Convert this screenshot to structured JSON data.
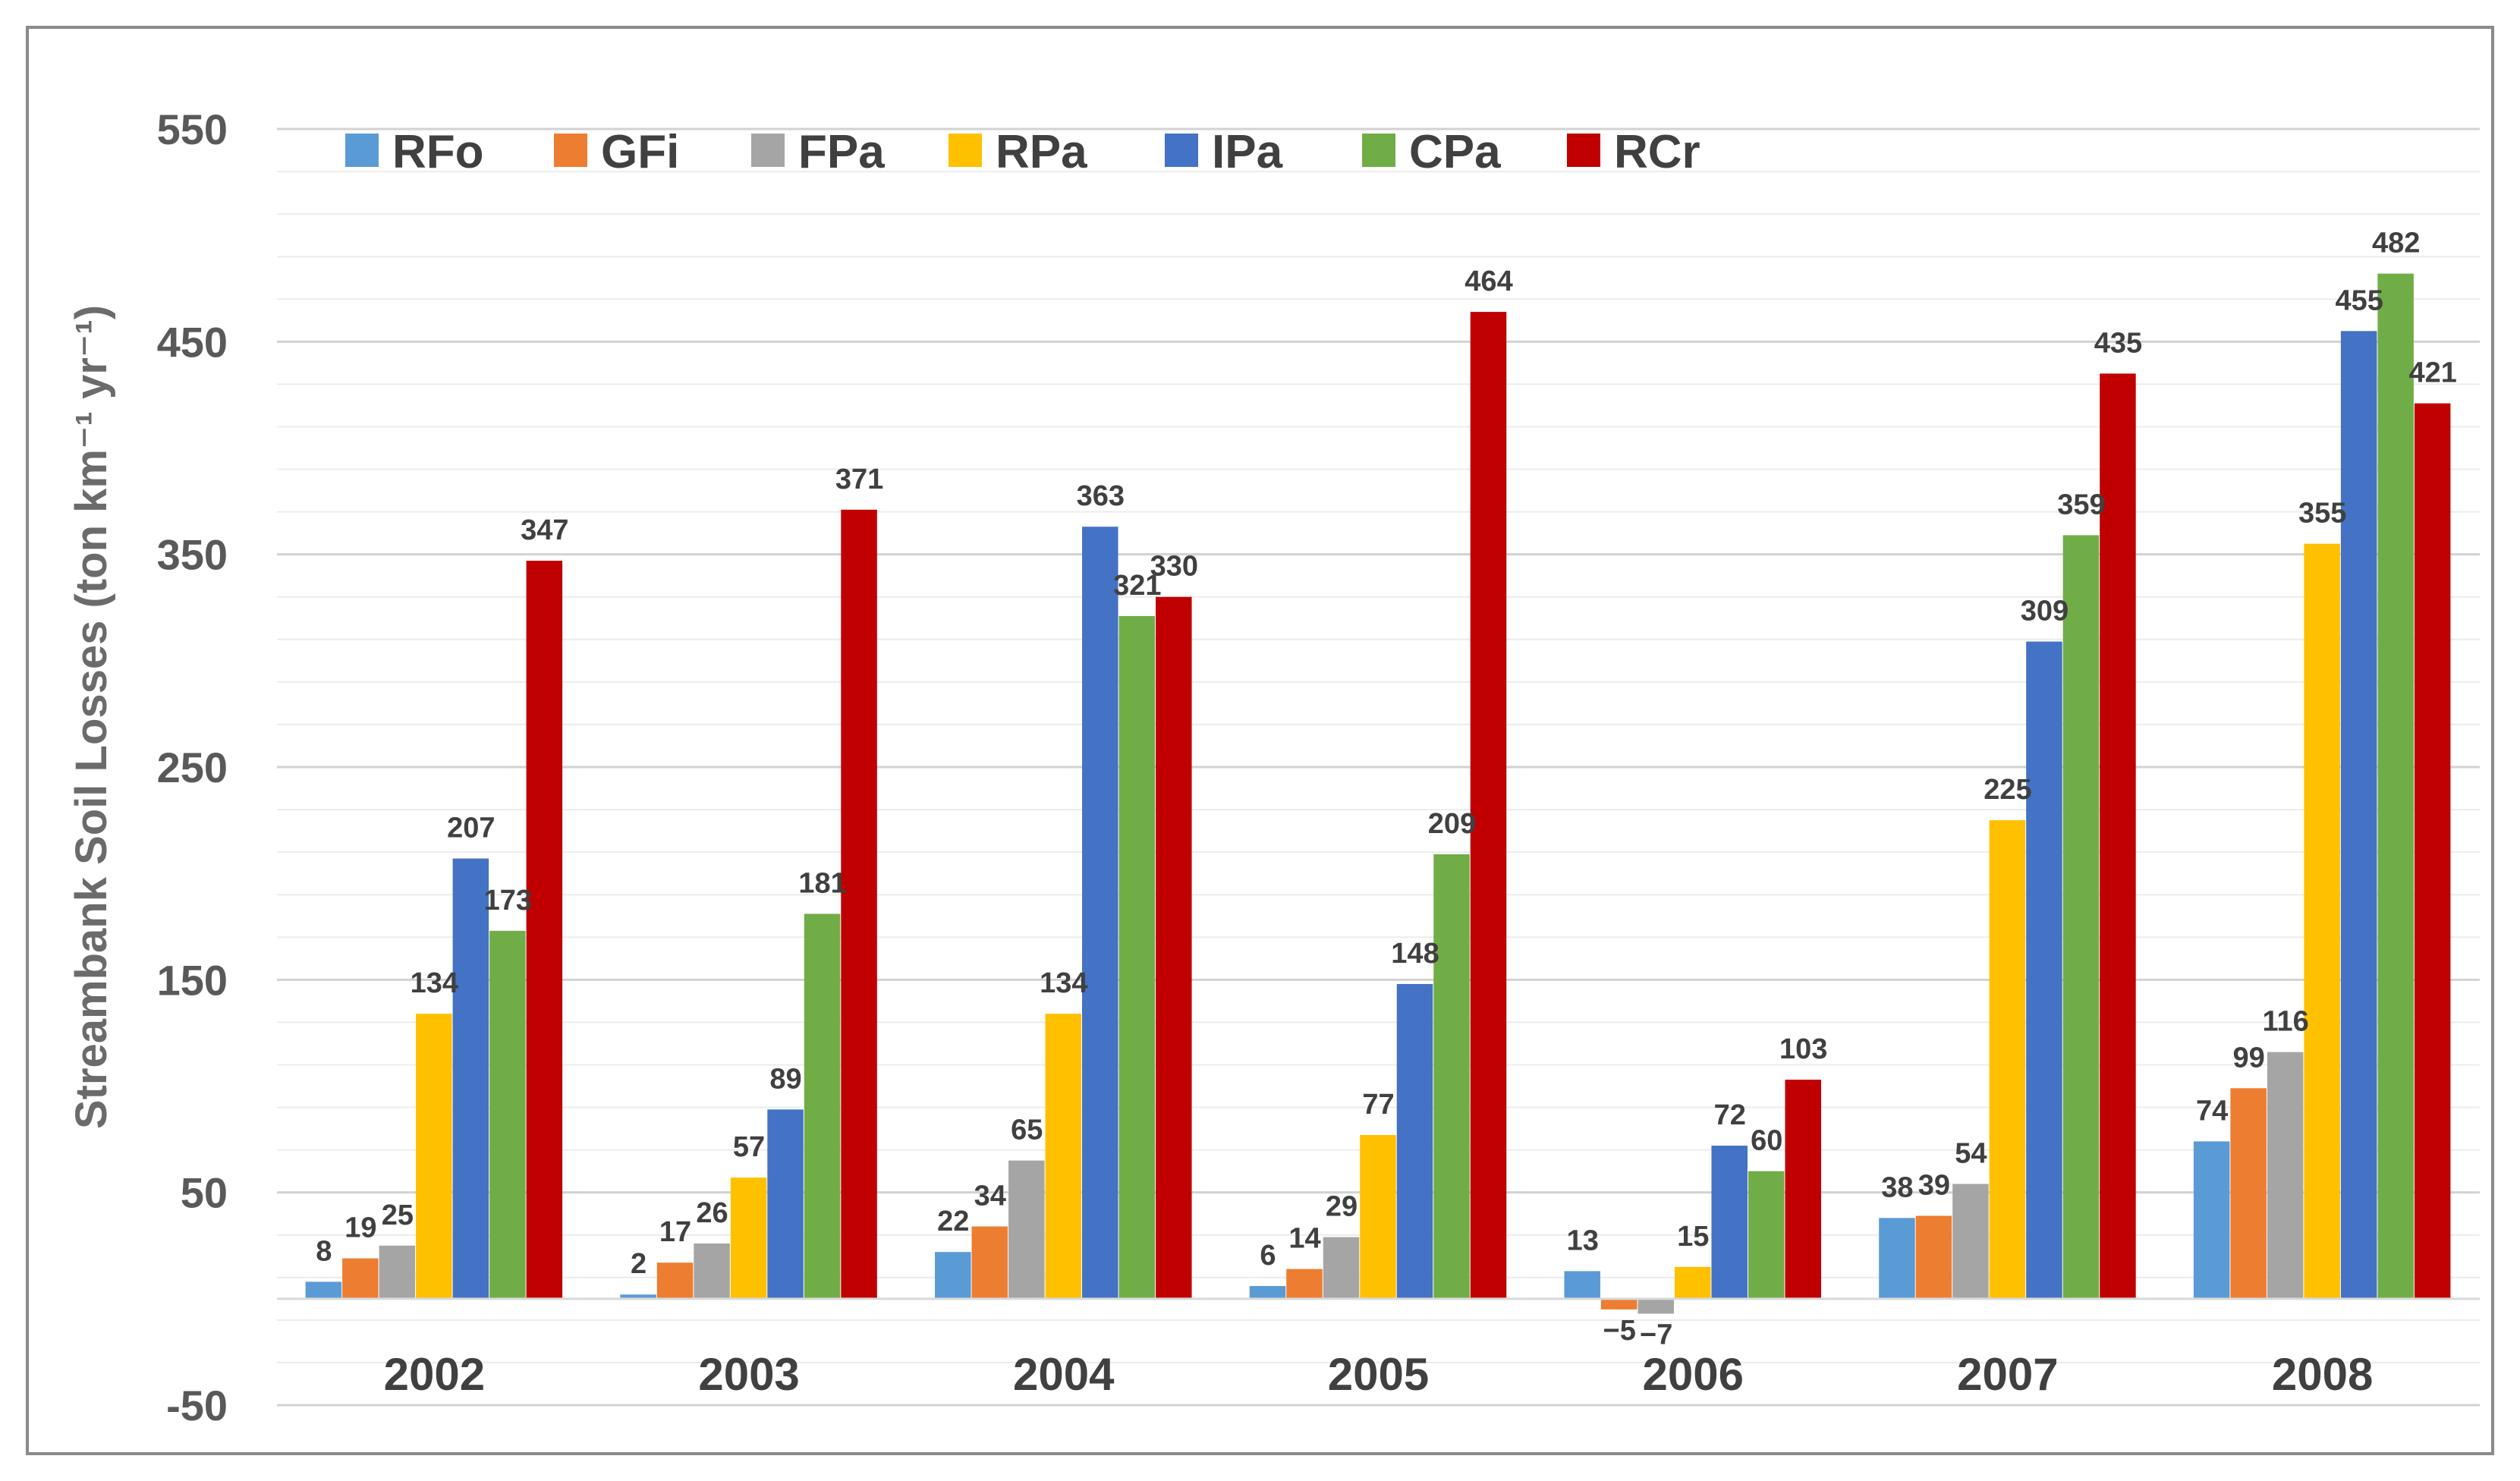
{
  "chart_data": {
    "type": "bar",
    "title": "",
    "xlabel": "",
    "ylabel": "Streambank Soil Losses (ton km⁻¹ yr⁻¹)",
    "ylim": [
      -50,
      550
    ],
    "yticks": [
      "550",
      "450",
      "350",
      "250",
      "150",
      "50",
      "-50"
    ],
    "ytick_values": [
      550,
      450,
      350,
      250,
      150,
      50,
      -50
    ],
    "minor_grid_step": 20,
    "legend_position": "top-left",
    "categories": [
      "2002",
      "2003",
      "2004",
      "2005",
      "2006",
      "2007",
      "2008"
    ],
    "series": [
      {
        "name": "RFo",
        "color": "#5B9BD5",
        "values": [
          8,
          2,
          22,
          6,
          13,
          38,
          74
        ],
        "labels": [
          "8",
          "2",
          "22",
          "6",
          "13",
          "38",
          "74"
        ]
      },
      {
        "name": "GFi",
        "color": "#ED7D31",
        "values": [
          19,
          17,
          34,
          14,
          -5,
          39,
          99
        ],
        "labels": [
          "19",
          "17",
          "34",
          "14",
          "−5",
          "39",
          "99"
        ]
      },
      {
        "name": "FPa",
        "color": "#A5A5A5",
        "values": [
          25,
          26,
          65,
          29,
          -7,
          54,
          116
        ],
        "labels": [
          "25",
          "26",
          "65",
          "29",
          "−7",
          "54",
          "116"
        ]
      },
      {
        "name": "RPa",
        "color": "#FFC000",
        "values": [
          134,
          57,
          134,
          77,
          15,
          225,
          355
        ],
        "labels": [
          "134",
          "57",
          "134",
          "77",
          "15",
          "225",
          "355"
        ]
      },
      {
        "name": "IPa",
        "color": "#4472C4",
        "values": [
          207,
          89,
          363,
          148,
          72,
          309,
          455
        ],
        "labels": [
          "207",
          "89",
          "363",
          "148",
          "72",
          "309",
          "455"
        ]
      },
      {
        "name": "CPa",
        "color": "#70AD47",
        "values": [
          173,
          181,
          321,
          209,
          60,
          359,
          482
        ],
        "labels": [
          "173",
          "181",
          "321",
          "209",
          "60",
          "359",
          "482"
        ]
      },
      {
        "name": "RCr",
        "color": "#C00000",
        "values": [
          347,
          371,
          330,
          464,
          103,
          435,
          421
        ],
        "labels": [
          "347",
          "371",
          "330",
          "464",
          "103",
          "435",
          "421"
        ]
      }
    ]
  }
}
